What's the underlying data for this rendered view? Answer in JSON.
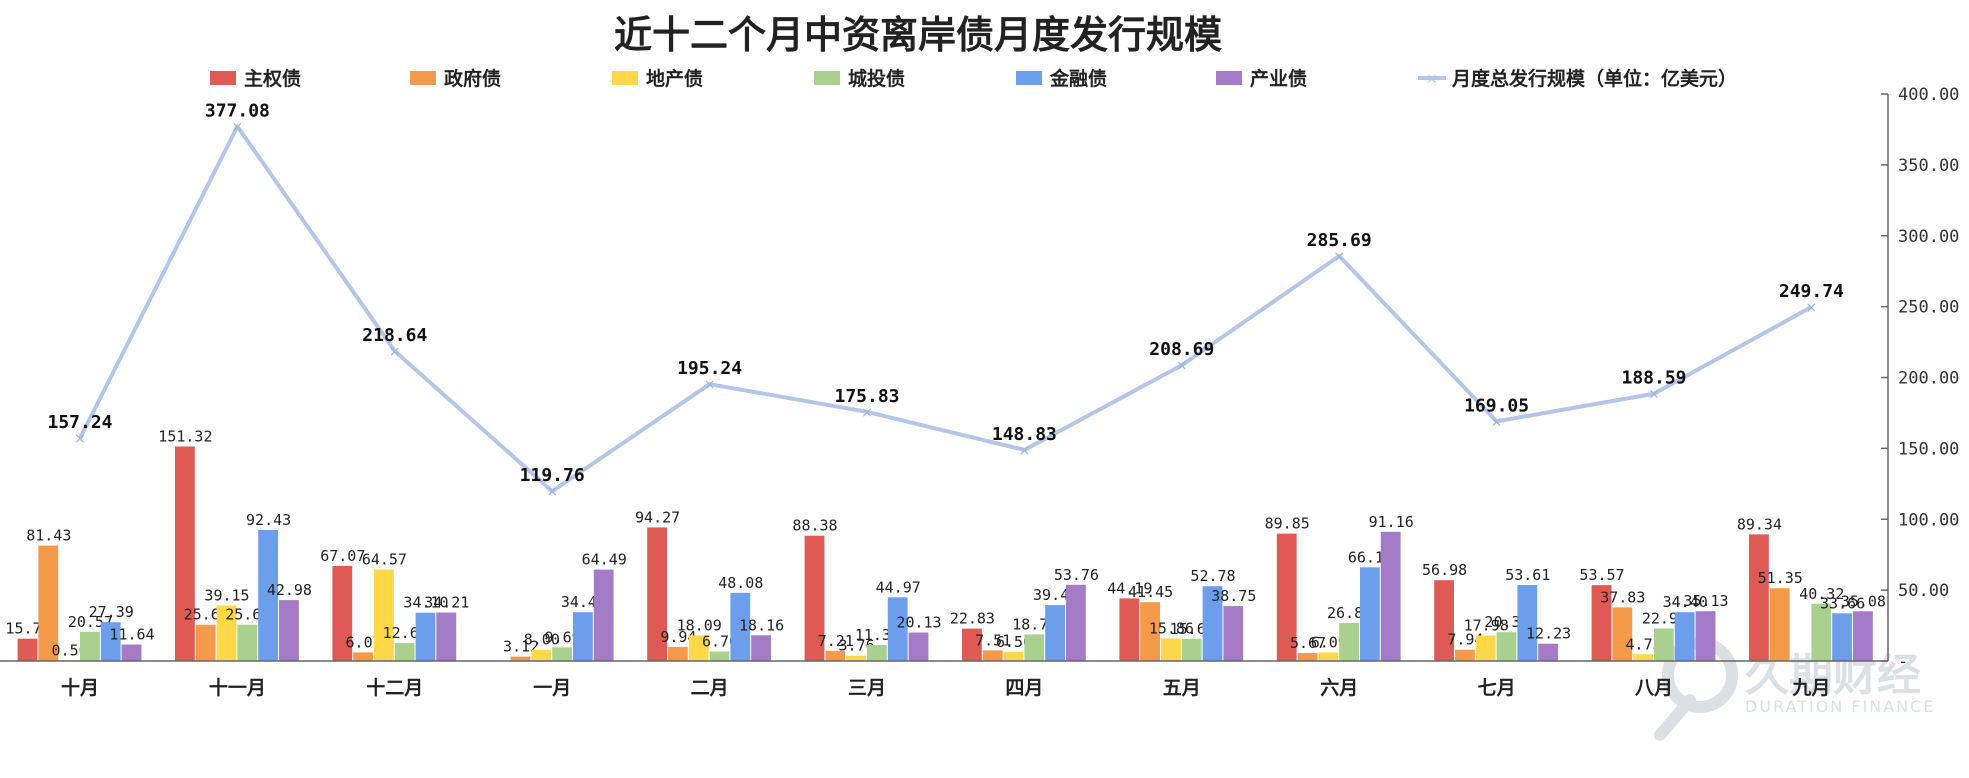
{
  "chart_data": {
    "type": "bar",
    "title": "近十二个月中资离岸债月度发行规模",
    "categories": [
      "十月",
      "十一月",
      "十二月",
      "一月",
      "二月",
      "三月",
      "四月",
      "五月",
      "六月",
      "七月",
      "八月",
      "九月"
    ],
    "series": [
      {
        "name": "主权债",
        "color": "#e05a55",
        "values": [
          15.7,
          151.32,
          67.07,
          0.0,
          94.27,
          88.38,
          22.83,
          44.19,
          89.85,
          56.98,
          53.57,
          89.34
        ]
      },
      {
        "name": "政府债",
        "color": "#f59a4a",
        "values": [
          81.43,
          25.6,
          6.07,
          3.12,
          9.94,
          7.21,
          7.51,
          41.45,
          5.67,
          7.94,
          37.83,
          51.35
        ]
      },
      {
        "name": "地产债",
        "color": "#ffd84a",
        "values": [
          0.5,
          39.15,
          64.57,
          8.0,
          18.09,
          3.76,
          6.5,
          15.86,
          6.09,
          17.98,
          4.75,
          0.0
        ]
      },
      {
        "name": "城投债",
        "color": "#a9d08e",
        "values": [
          20.57,
          25.6,
          12.62,
          9.69,
          6.7,
          11.38,
          18.79,
          15.66,
          26.81,
          20.31,
          22.92,
          40.32
        ]
      },
      {
        "name": "金融债",
        "color": "#6d9eeb",
        "values": [
          27.39,
          92.43,
          34.1,
          34.46,
          48.08,
          44.97,
          39.45,
          52.78,
          66.11,
          53.61,
          34.4,
          33.66
        ]
      },
      {
        "name": "产业债",
        "color": "#a47bc7",
        "values": [
          11.64,
          42.98,
          34.21,
          64.49,
          18.16,
          20.13,
          53.76,
          38.75,
          91.16,
          12.23,
          35.13,
          35.08
        ]
      }
    ],
    "line": {
      "name": "月度总发行规模（单位：亿美元）",
      "color": "#b4c6e7",
      "values": [
        157.24,
        377.08,
        218.64,
        119.76,
        195.24,
        175.83,
        148.83,
        208.69,
        285.69,
        169.05,
        188.59,
        249.74
      ]
    },
    "bar_labels": [
      [
        "15.70",
        "81.43",
        "0.50",
        "20.57",
        "27.39",
        "11.64"
      ],
      [
        "151.32",
        "25.60",
        "39.15",
        "25.60",
        "92.43",
        "42.98"
      ],
      [
        "67.07",
        "6.07",
        "64.57",
        "12.62",
        "34.10",
        "34.21"
      ],
      [
        "",
        "3.12",
        "8.00",
        "9.69",
        "34.46",
        "64.49"
      ],
      [
        "94.27",
        "9.94",
        "18.09",
        "6.70",
        "48.08",
        "18.16"
      ],
      [
        "88.38",
        "7.21",
        "3.76",
        "11.38",
        "44.97",
        "20.13"
      ],
      [
        "22.83",
        "7.51",
        "6.50",
        "18.79",
        "39.45",
        "53.76"
      ],
      [
        "44.19",
        "41.45",
        "15.86",
        "15.66",
        "52.78",
        "38.75"
      ],
      [
        "89.85",
        "5.67",
        "6.09",
        "26.81",
        "66.11",
        "91.16"
      ],
      [
        "56.98",
        "7.94",
        "17.98",
        "20.31",
        "53.61",
        "12.23"
      ],
      [
        "53.57",
        "37.83",
        "4.75",
        "22.92",
        "34.40",
        "35.13"
      ],
      [
        "89.34",
        "51.35",
        "",
        "40.32",
        "33.66",
        "35.08"
      ]
    ],
    "line_labels": [
      "157.24",
      "377.08",
      "218.64",
      "119.76",
      "195.24",
      "175.83",
      "148.83",
      "208.69",
      "285.69",
      "169.05",
      "188.59",
      "249.74"
    ],
    "yaxis": {
      "position": "right",
      "min": 0,
      "max": 400,
      "step": 50,
      "tick_labels": [
        "-",
        "50.00",
        "100.00",
        "150.00",
        "200.00",
        "250.00",
        "300.00",
        "350.00",
        "400.00"
      ]
    },
    "legend_position": "top",
    "grid": false
  },
  "watermark": {
    "main": "久期财经",
    "sub": "DURATION FINANCE"
  }
}
